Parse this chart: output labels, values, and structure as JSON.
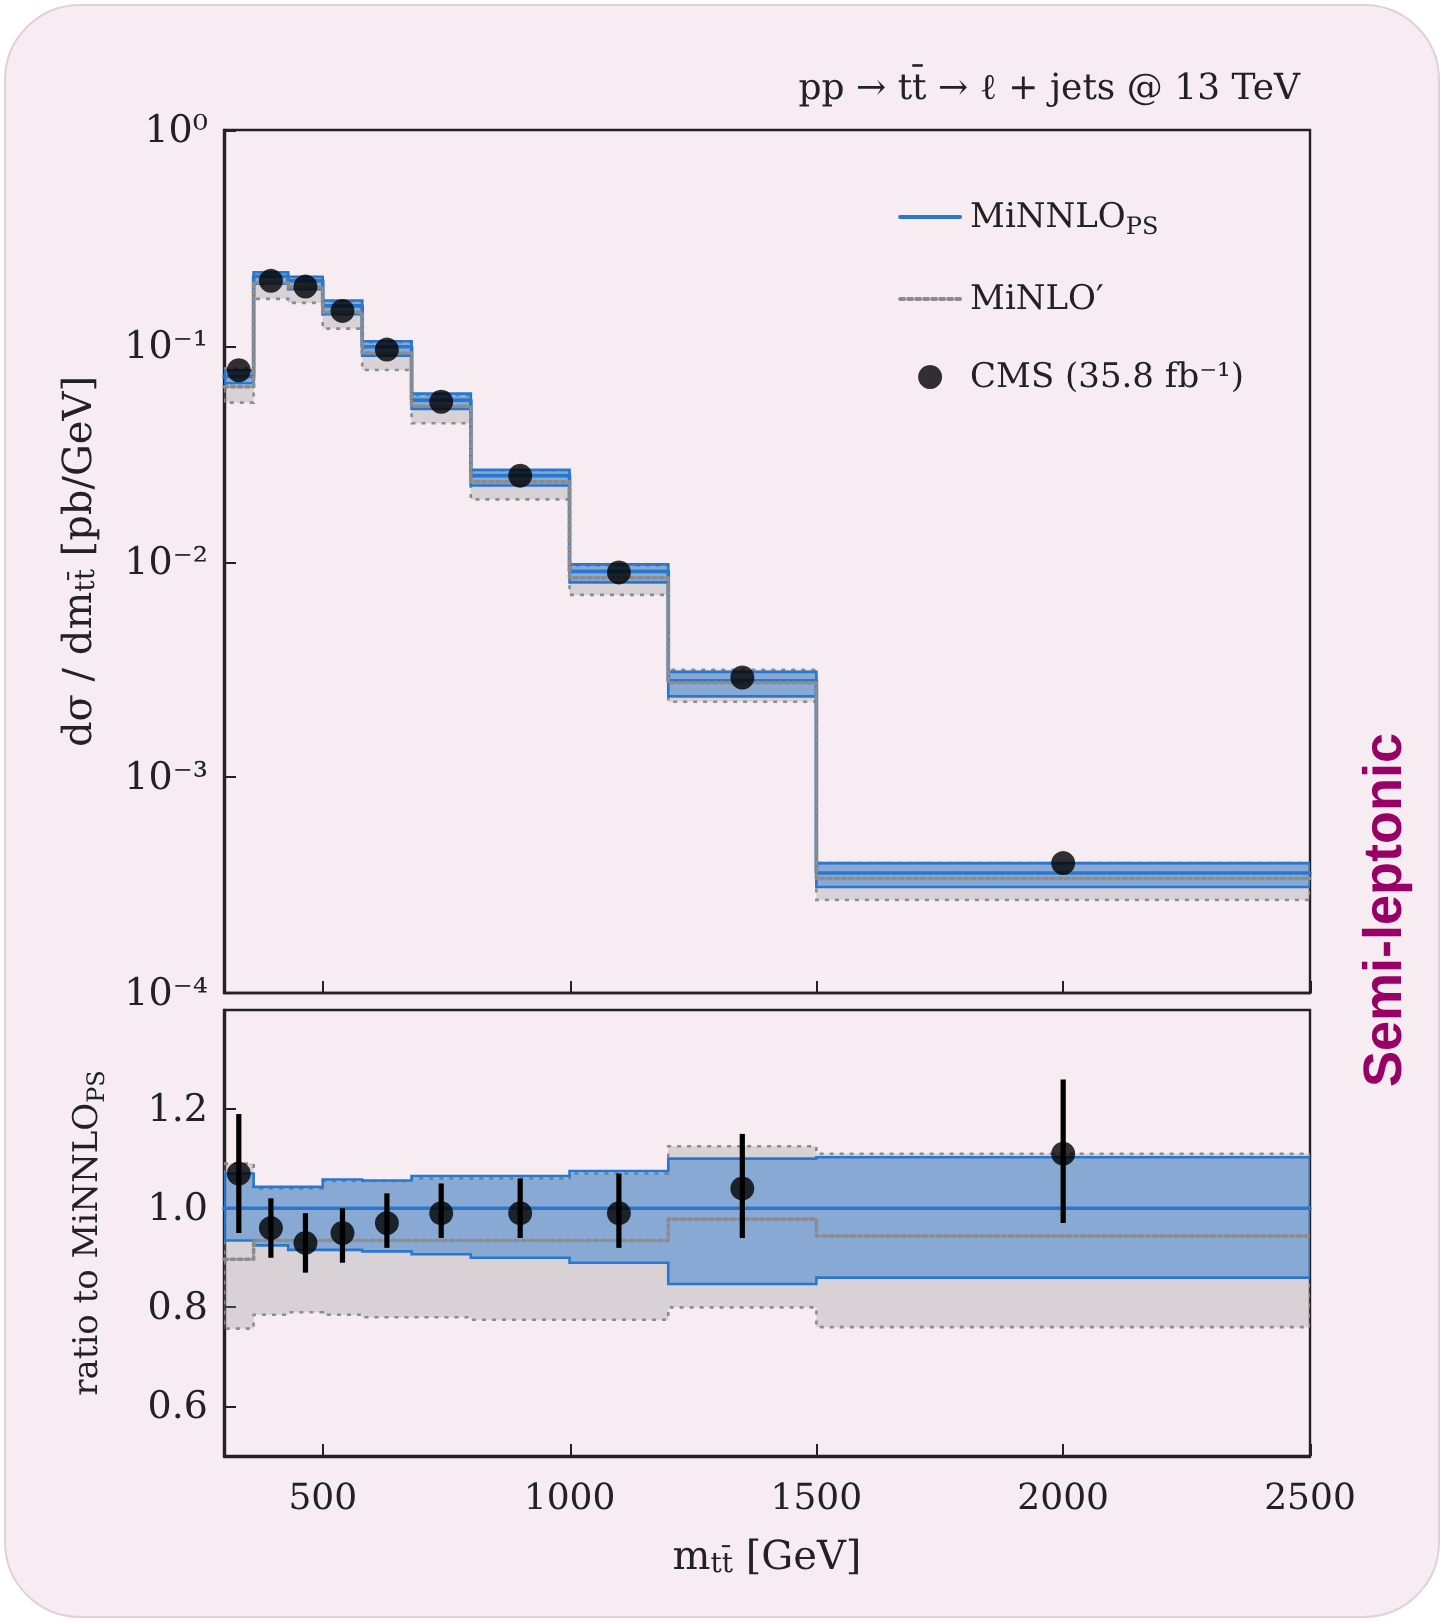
{
  "chart_data": [
    {
      "type": "step",
      "title": "pp → tt̄ → ℓ + jets @ 13 TeV",
      "ylabel": "dσ / dm$_{tt̄}$ [pb/GeV]",
      "annotations": [
        "Semi-leptonic"
      ],
      "x": [
        300,
        360,
        430,
        500,
        580,
        680,
        800,
        1000,
        1200,
        1500,
        2500
      ],
      "series": [
        {
          "name": "MiNNLO$_{PS}$",
          "color": "#2878d0",
          "values": [
            0.072,
            0.21,
            0.2,
            0.153,
            0.099,
            0.056,
            0.025,
            0.009,
            0.0028,
            0.00036,
            0.00036
          ],
          "lower": [
            0.067,
            0.194,
            0.183,
            0.14,
            0.09,
            0.051,
            0.0225,
            0.008,
            0.00237,
            0.00031,
            0.00031
          ],
          "upper": [
            0.077,
            0.219,
            0.209,
            0.162,
            0.105,
            0.06,
            0.0266,
            0.0097,
            0.00308,
            0.0004,
            0.0004
          ]
        },
        {
          "name": "MiNLO′",
          "color": "#8c8c8c",
          "line_style": "dotted",
          "values": [
            0.0646,
            0.196,
            0.187,
            0.143,
            0.0926,
            0.0524,
            0.0234,
            0.0084,
            0.00274,
            0.00034,
            0.00034
          ],
          "lower": [
            0.0545,
            0.165,
            0.158,
            0.12,
            0.0772,
            0.0437,
            0.0194,
            0.007,
            0.00224,
            0.00027,
            0.00027
          ],
          "upper": [
            0.0785,
            0.218,
            0.208,
            0.161,
            0.104,
            0.059,
            0.0265,
            0.0096,
            0.00315,
            0.0004,
            0.0004
          ]
        },
        {
          "name": "CMS (35.8 fb⁻¹)",
          "type": "scatter",
          "marker": "circle",
          "color": "#000000",
          "x": [
            330,
            395,
            465,
            540,
            630,
            740,
            900,
            1100,
            1350,
            2000
          ],
          "values": [
            0.077,
            0.2,
            0.188,
            0.145,
            0.096,
            0.055,
            0.025,
            0.0089,
            0.0029,
            0.0004
          ]
        }
      ],
      "xlim": [
        300,
        2500
      ],
      "xticks": [
        500,
        1000,
        1500,
        2000,
        2500
      ],
      "ylim": [
        0.0001,
        1
      ],
      "yticks": [
        {
          "value": 0.0001,
          "label": "10⁻⁴"
        },
        {
          "value": 0.001,
          "label": "10⁻³"
        },
        {
          "value": 0.01,
          "label": "10⁻²"
        },
        {
          "value": 0.1,
          "label": "10⁻¹"
        },
        {
          "value": 1,
          "label": "10⁰"
        }
      ],
      "log": "y",
      "legend": "top right",
      "tick_labels": "y"
    },
    {
      "type": "step",
      "xlabel": "m$_{tt̄}$ [GeV]",
      "ylabel": "ratio to MiNNLO$_{PS}$",
      "x": [
        300,
        360,
        430,
        500,
        580,
        680,
        800,
        1000,
        1200,
        1500,
        2500
      ],
      "series": [
        {
          "color": "#2878d0",
          "values": [
            1,
            1,
            1,
            1,
            1,
            1,
            1,
            1,
            1,
            1,
            1
          ],
          "lower": [
            0.935,
            0.925,
            0.916,
            0.916,
            0.913,
            0.907,
            0.9,
            0.89,
            0.847,
            0.86,
            0.86
          ],
          "upper": [
            1.07,
            1.043,
            1.043,
            1.058,
            1.056,
            1.065,
            1.065,
            1.075,
            1.1,
            1.103,
            1.103
          ]
        },
        {
          "color": "#8c8c8c",
          "line_style": "dotted",
          "values": [
            0.897,
            0.935,
            0.935,
            0.935,
            0.935,
            0.935,
            0.935,
            0.935,
            0.978,
            0.944,
            0.944
          ],
          "lower": [
            0.757,
            0.785,
            0.79,
            0.785,
            0.78,
            0.78,
            0.775,
            0.775,
            0.8,
            0.76,
            0.76
          ],
          "upper": [
            1.09,
            1.04,
            1.04,
            1.055,
            1.055,
            1.06,
            1.06,
            1.07,
            1.125,
            1.11,
            1.11
          ]
        },
        {
          "type": "scatter",
          "marker": "circle",
          "color": "#000000",
          "x": [
            330,
            395,
            465,
            540,
            630,
            740,
            900,
            1100,
            1350,
            2000
          ],
          "values": [
            1.07,
            0.96,
            0.93,
            0.95,
            0.97,
            0.99,
            0.99,
            0.99,
            1.04,
            1.11
          ],
          "errors": [
            [
              0.95,
              1.19
            ],
            [
              0.9,
              1.02
            ],
            [
              0.87,
              0.99
            ],
            [
              0.89,
              1.0
            ],
            [
              0.92,
              1.03
            ],
            [
              0.94,
              1.05
            ],
            [
              0.94,
              1.06
            ],
            [
              0.92,
              1.07
            ],
            [
              0.94,
              1.15
            ],
            [
              0.97,
              1.26
            ]
          ]
        }
      ],
      "xlim": [
        300,
        2500
      ],
      "xticks": [
        500,
        1000,
        1500,
        2000,
        2500
      ],
      "ylim": [
        0.5,
        1.4
      ],
      "yticks": [
        {
          "value": 0.6,
          "label": "0.6"
        },
        {
          "value": 0.8,
          "label": "0.8"
        },
        {
          "value": 1,
          "label": "1.0"
        },
        {
          "value": 1.2,
          "label": "1.2"
        }
      ]
    }
  ]
}
